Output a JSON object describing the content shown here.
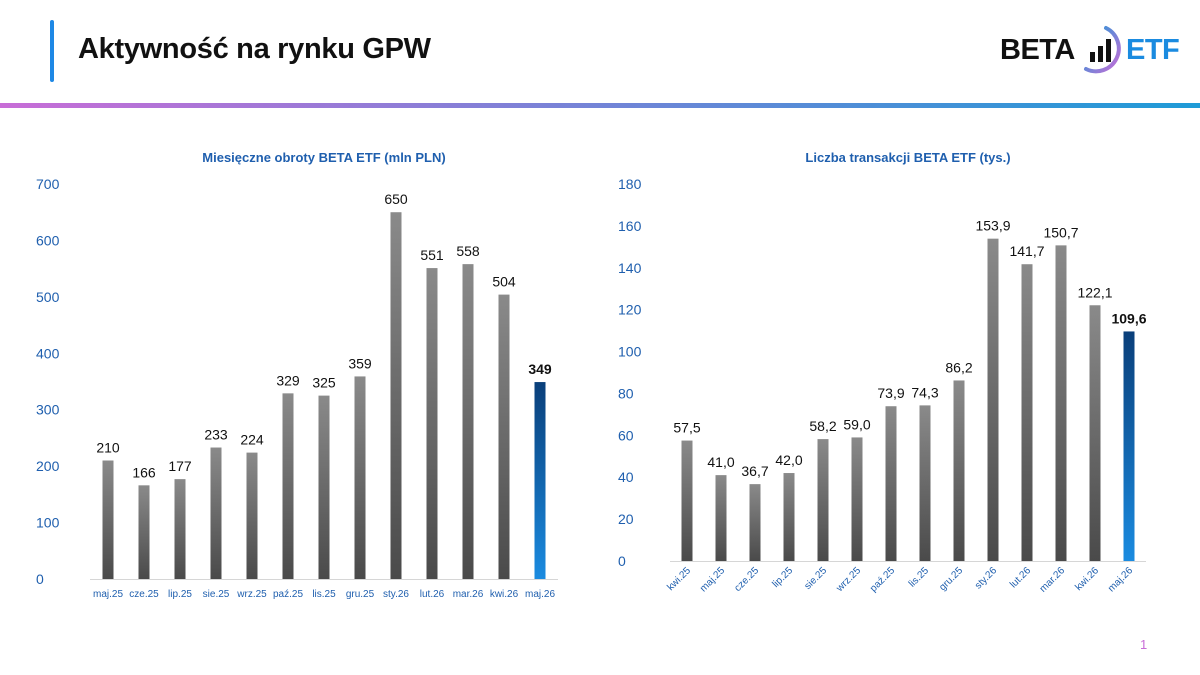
{
  "header": {
    "title": "Aktywność na rynku GPW",
    "logo_left": "BETA",
    "logo_right": "ETF"
  },
  "colors": {
    "accent": "#1e88e5",
    "bar_gray": "#6e6e6e",
    "bar_highlight": "#0b5cad",
    "axis_text": "#1f5fae",
    "gradient_start": "#c86dd7",
    "gradient_end": "#1e9bd7"
  },
  "page_number": "1",
  "chart_data": [
    {
      "type": "bar",
      "title": "Miesięczne obroty  BETA ETF (mln PLN)",
      "categories": [
        "maj.25",
        "cze.25",
        "lip.25",
        "sie.25",
        "wrz.25",
        "paź.25",
        "lis.25",
        "gru.25",
        "sty.26",
        "lut.26",
        "mar.26",
        "kwi.26",
        "maj.26"
      ],
      "values": [
        210,
        166,
        177,
        233,
        224,
        329,
        325,
        359,
        650,
        551,
        558,
        504,
        349
      ],
      "value_labels": [
        "210",
        "166",
        "177",
        "233",
        "224",
        "329",
        "325",
        "359",
        "650",
        "551",
        "558",
        "504",
        "349"
      ],
      "highlight_index": 12,
      "ylim": [
        0,
        700
      ],
      "yticks": [
        "0",
        "100",
        "200",
        "300",
        "400",
        "500",
        "600",
        "700"
      ],
      "grid": false,
      "rotate_x_labels": false
    },
    {
      "type": "bar",
      "title": "Liczba transakcji BETA ETF (tys.)",
      "categories": [
        "kwi.25",
        "maj.25",
        "cze.25",
        "lip.25",
        "sie.25",
        "wrz.25",
        "paź.25",
        "lis.25",
        "gru.25",
        "sty.26",
        "lut.26",
        "mar.26",
        "kwi.26",
        "maj.26"
      ],
      "values": [
        57.5,
        41.0,
        36.7,
        42.0,
        58.2,
        59.0,
        73.9,
        74.3,
        86.2,
        153.9,
        141.7,
        150.7,
        122.1,
        109.6
      ],
      "value_labels": [
        "57,5",
        "41,0",
        "36,7",
        "42,0",
        "58,2",
        "59,0",
        "73,9",
        "74,3",
        "86,2",
        "153,9",
        "141,7",
        "150,7",
        "122,1",
        "109,6"
      ],
      "highlight_index": 13,
      "ylim": [
        0,
        180
      ],
      "yticks": [
        "0",
        "20",
        "40",
        "60",
        "80",
        "100",
        "120",
        "140",
        "160",
        "180"
      ],
      "grid": false,
      "rotate_x_labels": true
    }
  ]
}
